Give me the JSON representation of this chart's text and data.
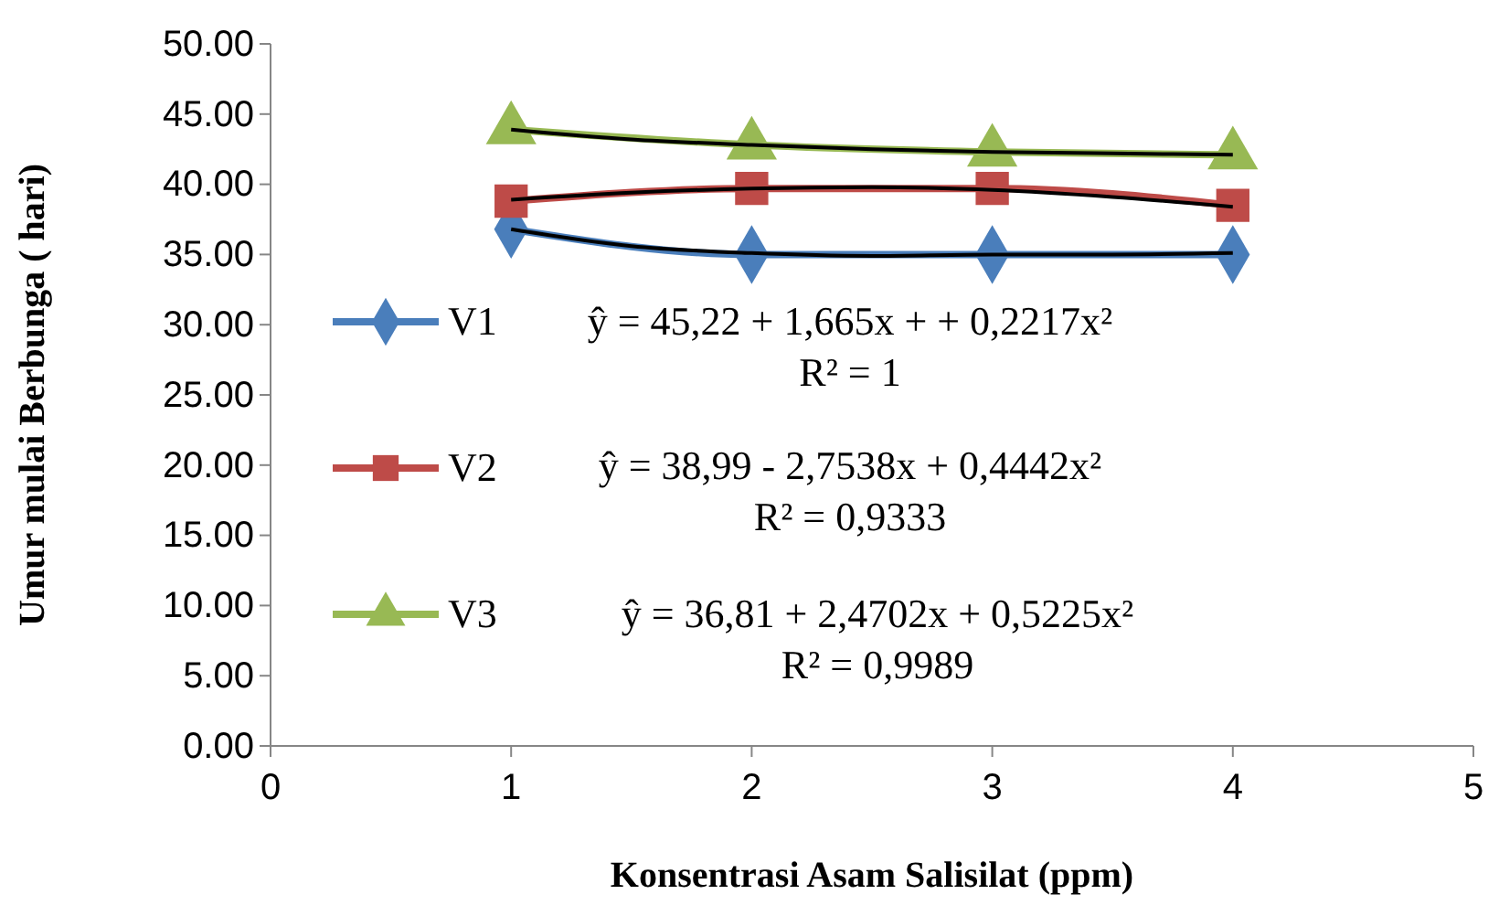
{
  "chart_data": {
    "type": "line",
    "xlabel": "Konsentrasi Asam Salisilat (ppm)",
    "ylabel": "Umur mulai Berbunga ( hari)",
    "xlim": [
      0,
      5
    ],
    "xticks": [
      0,
      1,
      2,
      3,
      4,
      5
    ],
    "ylim": [
      0,
      50
    ],
    "yticks": [
      {
        "value": 0,
        "label": "0.00"
      },
      {
        "value": 5,
        "label": "5.00"
      },
      {
        "value": 10,
        "label": "10.00"
      },
      {
        "value": 15,
        "label": "15.00"
      },
      {
        "value": 20,
        "label": "20.00"
      },
      {
        "value": 25,
        "label": "25.00"
      },
      {
        "value": 30,
        "label": "30.00"
      },
      {
        "value": 35,
        "label": "35.00"
      },
      {
        "value": 40,
        "label": "40.00"
      },
      {
        "value": 45,
        "label": "45.00"
      },
      {
        "value": 50,
        "label": "50.00"
      }
    ],
    "grid": false,
    "legend": "left",
    "series": [
      {
        "name": "V1",
        "color": "#4a7ebb",
        "marker": "diamond",
        "x": [
          1,
          2,
          3,
          4
        ],
        "values": [
          36.8,
          35.0,
          35.0,
          35.0
        ]
      },
      {
        "name": "V2",
        "color": "#be4b48",
        "marker": "square",
        "x": [
          1,
          2,
          3,
          4
        ],
        "values": [
          38.8,
          39.7,
          39.7,
          38.5
        ]
      },
      {
        "name": "V3",
        "color": "#98b954",
        "marker": "triangle",
        "x": [
          1,
          2,
          3,
          4
        ],
        "values": [
          43.9,
          42.8,
          42.3,
          42.1
        ]
      },
      {
        "color": "#000000",
        "marker": "none",
        "x": [
          1,
          1.5,
          2,
          2.5,
          3,
          3.5,
          4
        ],
        "values": [
          36.8,
          35.6,
          35.1,
          34.9,
          35.0,
          35.0,
          35.1
        ]
      },
      {
        "color": "#000000",
        "marker": "none",
        "x": [
          1,
          1.5,
          2,
          2.5,
          3,
          3.5,
          4
        ],
        "values": [
          38.9,
          39.4,
          39.7,
          39.8,
          39.6,
          39.1,
          38.4
        ]
      },
      {
        "color": "#000000",
        "marker": "none",
        "x": [
          1,
          1.5,
          2,
          2.5,
          3,
          3.5,
          4
        ],
        "values": [
          43.9,
          43.2,
          42.8,
          42.5,
          42.3,
          42.2,
          42.1
        ]
      }
    ],
    "annotations": [
      "ŷ = 45,22 + 1,665x + + 0,2217x²",
      "R² = 1",
      "ŷ = 38,99 - 2,7538x + 0,4442x²",
      "R² = 0,9333",
      "ŷ = 36,81 + 2,4702x + 0,5225x²",
      "R² = 0,9989"
    ]
  }
}
